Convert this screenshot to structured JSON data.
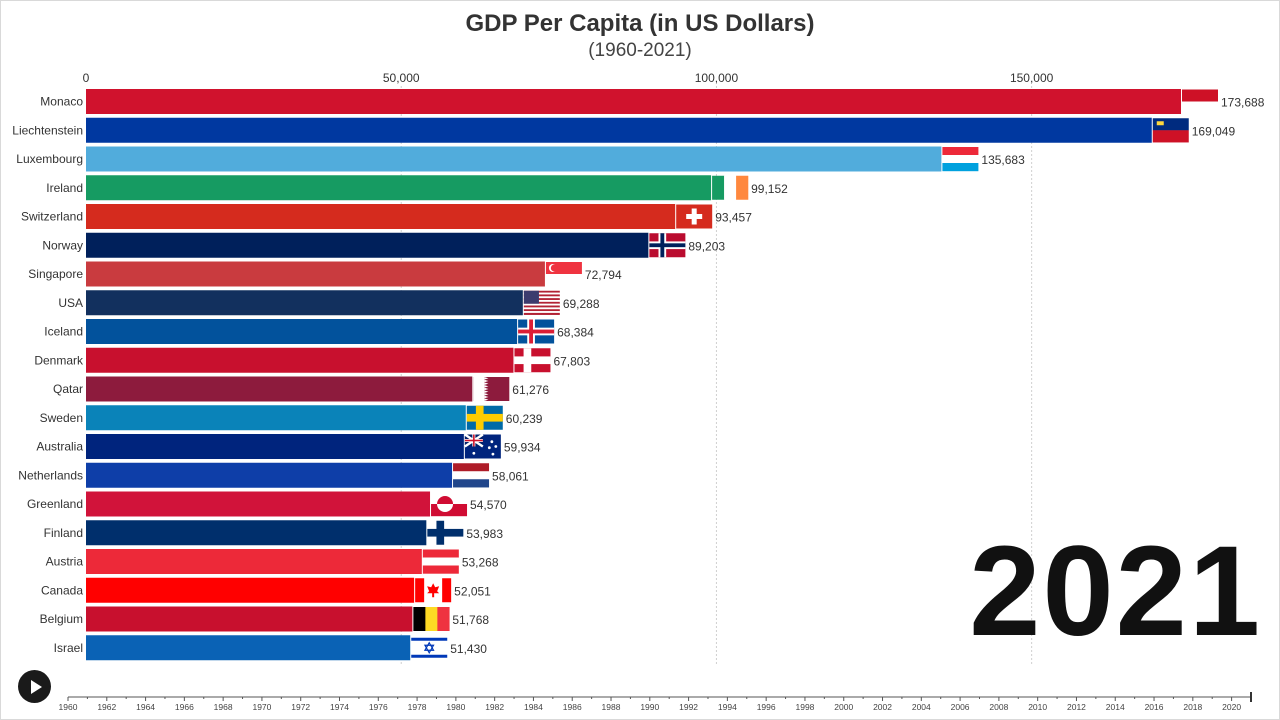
{
  "title": "GDP Per Capita (in US Dollars)",
  "subtitle": "(1960-2021)",
  "current_year": "2021",
  "play_button_icon": "play-icon",
  "timeline": {
    "ticks": [
      "1960",
      "1962",
      "1964",
      "1966",
      "1968",
      "1970",
      "1972",
      "1974",
      "1976",
      "1978",
      "1980",
      "1982",
      "1984",
      "1986",
      "1988",
      "1990",
      "1992",
      "1994",
      "1996",
      "1998",
      "2000",
      "2002",
      "2004",
      "2006",
      "2008",
      "2010",
      "2012",
      "2014",
      "2016",
      "2018",
      "2020"
    ],
    "start": 1960,
    "end": 2021,
    "current": 2021
  },
  "chart_data": {
    "type": "bar",
    "orientation": "horizontal",
    "title": "GDP Per Capita (in US Dollars)",
    "subtitle": "(1960-2021)",
    "xlim": [
      0,
      173688
    ],
    "x_ticks": [
      0,
      50000,
      100000,
      150000
    ],
    "x_tick_labels": [
      "0",
      "50,000",
      "100,000",
      "150,000"
    ],
    "grid": "vertical",
    "categories": [
      "Monaco",
      "Liechtenstein",
      "Luxembourg",
      "Ireland",
      "Switzerland",
      "Norway",
      "Singapore",
      "USA",
      "Iceland",
      "Denmark",
      "Qatar",
      "Sweden",
      "Australia",
      "Netherlands",
      "Greenland",
      "Finland",
      "Austria",
      "Canada",
      "Belgium",
      "Israel"
    ],
    "values": [
      173688,
      169049,
      135683,
      99152,
      93457,
      89203,
      72794,
      69288,
      68384,
      67803,
      61276,
      60239,
      59934,
      58061,
      54570,
      53983,
      53268,
      52051,
      51768,
      51430
    ],
    "value_labels": [
      "173,688",
      "169,049",
      "135,683",
      "99,152",
      "93,457",
      "89,203",
      "72,794",
      "69,288",
      "68,384",
      "67,803",
      "61,276",
      "60,239",
      "59,934",
      "58,061",
      "54,570",
      "53,983",
      "53,268",
      "52,051",
      "51,768",
      "51,430"
    ],
    "colors": [
      "#d0122d",
      "#0038a0",
      "#51acdc",
      "#169b62",
      "#d52b1e",
      "#00205b",
      "#c93b3f",
      "#12305e",
      "#02529c",
      "#c8102e",
      "#8d1b3d",
      "#0a83b9",
      "#00247d",
      "#0e3ea8",
      "#d1133a",
      "#002f6c",
      "#ed2939",
      "#ff0000",
      "#c8102e",
      "#0a62b5"
    ],
    "flags": [
      "monaco",
      "liechtenstein",
      "luxembourg",
      "ireland",
      "switzerland",
      "norway",
      "singapore",
      "usa",
      "iceland",
      "denmark",
      "qatar",
      "sweden",
      "australia",
      "netherlands",
      "greenland",
      "finland",
      "austria",
      "canada",
      "belgium",
      "israel"
    ],
    "year": "2021"
  }
}
